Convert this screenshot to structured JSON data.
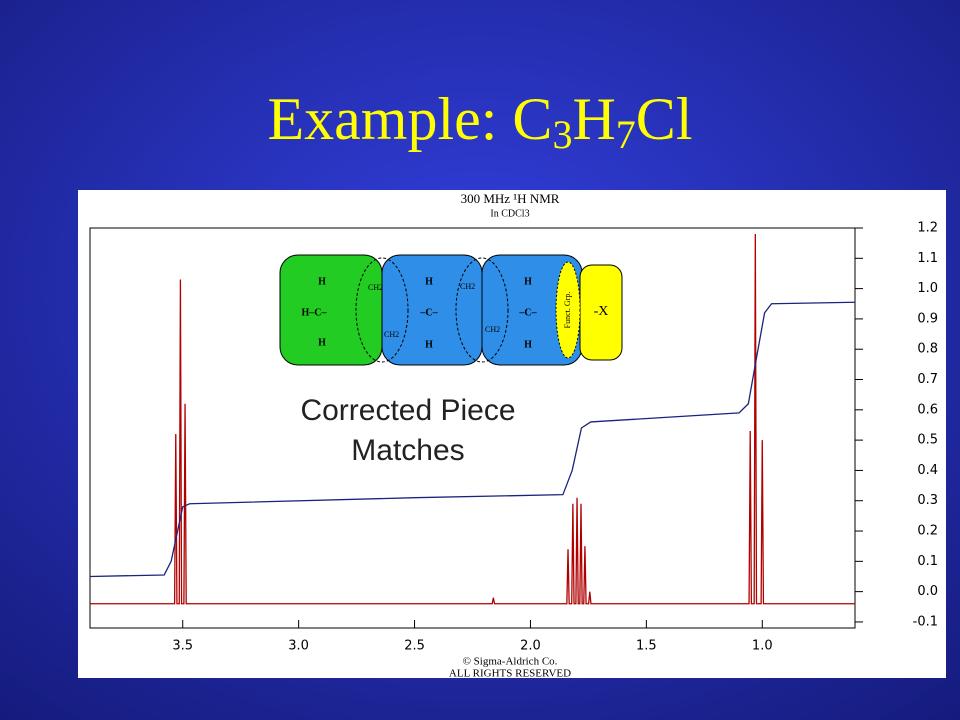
{
  "slide": {
    "title_parts": [
      "Example: C",
      "3",
      "H",
      "7",
      "Cl"
    ]
  },
  "chart_data": {
    "type": "line",
    "title": "300 MHz ¹H NMR",
    "subtitle": "In CDCl3",
    "footer": [
      "© Sigma-Aldrich Co.",
      "ALL RIGHTS RESERVED"
    ],
    "annotation": [
      "Corrected Piece",
      "Matches"
    ],
    "xlim": [
      3.9,
      0.6
    ],
    "xticks": [
      3.5,
      {
        "value": 3,
        "label": "3.0"
      },
      2.5,
      {
        "value": 2,
        "label": "2.0"
      },
      1.5,
      {
        "value": 1,
        "label": "1.0"
      }
    ],
    "ylim": [
      -0.12,
      1.2
    ],
    "yticks": [
      -0.1,
      {
        "value": 0,
        "label": "0.0"
      },
      0.1,
      0.2,
      0.3,
      0.4,
      0.5,
      0.6,
      0.7,
      0.8,
      0.9,
      {
        "value": 1,
        "label": "1.0"
      },
      1.1,
      1.2
    ],
    "series": [
      {
        "color": "#b00000",
        "x": [
          3.9,
          3.535,
          3.53,
          3.525,
          3.515,
          3.51,
          3.505,
          3.495,
          3.49,
          3.485,
          2.165,
          2.16,
          2.155,
          1.843,
          1.838,
          1.833,
          1.822,
          1.817,
          1.812,
          1.804,
          1.799,
          1.794,
          1.787,
          1.782,
          1.777,
          1.77,
          1.765,
          1.76,
          1.749,
          1.744,
          1.739,
          1.057,
          1.052,
          1.047,
          1.035,
          1.03,
          1.025,
          1.005,
          1.0,
          0.995,
          0.6
        ],
        "values": [
          -0.04,
          -0.04,
          0.52,
          -0.04,
          -0.04,
          1.03,
          -0.04,
          -0.04,
          0.62,
          -0.04,
          -0.04,
          -0.02,
          -0.04,
          -0.04,
          0.14,
          -0.04,
          -0.04,
          0.29,
          -0.04,
          -0.04,
          0.31,
          -0.04,
          -0.04,
          0.29,
          -0.04,
          -0.04,
          0.15,
          -0.04,
          -0.04,
          0.0,
          -0.04,
          -0.04,
          0.53,
          -0.04,
          -0.04,
          1.18,
          -0.04,
          -0.04,
          0.5,
          -0.04,
          -0.04
        ]
      },
      {
        "color": "#1a237e",
        "x": [
          3.9,
          3.58,
          3.55,
          3.5,
          3.47,
          2.5,
          1.86,
          1.82,
          1.78,
          1.74,
          1.1,
          1.06,
          1.03,
          0.99,
          0.96,
          0.6
        ],
        "values": [
          0.05,
          0.055,
          0.1,
          0.28,
          0.29,
          0.31,
          0.32,
          0.4,
          0.54,
          0.56,
          0.59,
          0.62,
          0.75,
          0.92,
          0.95,
          0.955
        ]
      }
    ]
  },
  "diagram": {
    "piece1": [
      "H",
      "H–C–",
      "H"
    ],
    "piece2": [
      "H",
      "–C–",
      "H"
    ],
    "piece3": [
      "H",
      "–C–",
      "H"
    ],
    "ch2": [
      "CH2",
      "CH2",
      "CH2",
      "CH2"
    ],
    "funct": "Funct. Grp.",
    "x": "-X"
  }
}
